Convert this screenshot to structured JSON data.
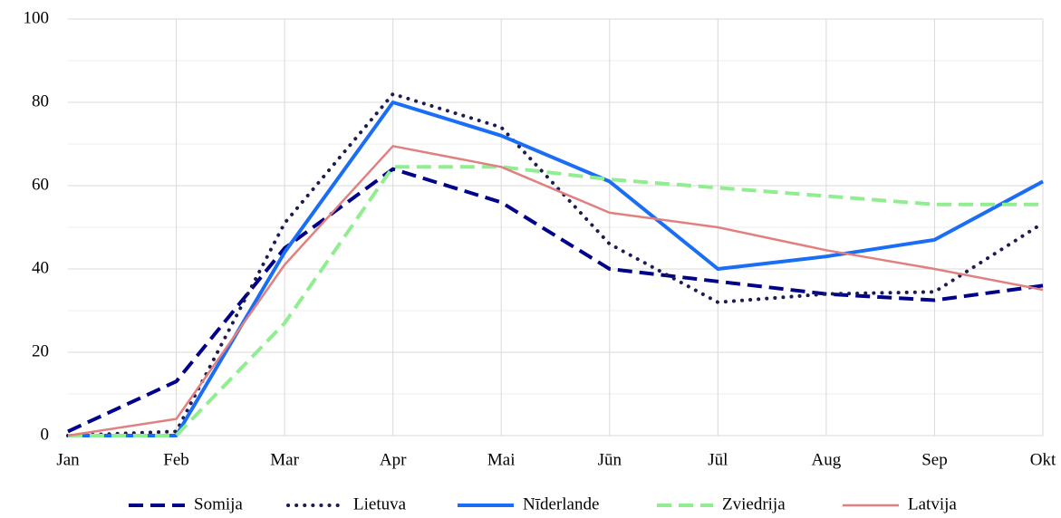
{
  "chart_data": {
    "type": "line",
    "categories": [
      "Jan",
      "Feb",
      "Mar",
      "Apr",
      "Mai",
      "Jūn",
      "Jūl",
      "Aug",
      "Sep",
      "Okt"
    ],
    "series": [
      {
        "name": "Somija",
        "color": "#00008b",
        "style": "dashed",
        "values": [
          1,
          13,
          45,
          64,
          56,
          40,
          37,
          34,
          32.5,
          36
        ]
      },
      {
        "name": "Lietuva",
        "color": "#1c1c50",
        "style": "dotted",
        "values": [
          0,
          1,
          51,
          82,
          74,
          46,
          32,
          34,
          34.5,
          51
        ]
      },
      {
        "name": "Nīderlande",
        "color": "#1a6ef5",
        "style": "solid",
        "values": [
          0,
          0,
          44,
          80,
          72,
          61,
          40,
          43,
          47,
          61
        ]
      },
      {
        "name": "Zviedrija",
        "color": "#90ee90",
        "style": "dashed",
        "values": [
          0,
          0,
          27,
          64.5,
          64.5,
          61.5,
          59.5,
          57.5,
          55.5,
          55.5
        ]
      },
      {
        "name": "Latvija",
        "color": "#e08080",
        "style": "thin",
        "values": [
          0,
          4,
          41,
          69.5,
          64.5,
          53.5,
          50,
          44.5,
          40,
          35
        ]
      }
    ],
    "ylim": [
      0,
      100
    ],
    "yticks": [
      0,
      20,
      40,
      60,
      80,
      100
    ],
    "minor_yticks": [
      10,
      30,
      50,
      70,
      90
    ],
    "grid": true,
    "legend": "bottom"
  }
}
